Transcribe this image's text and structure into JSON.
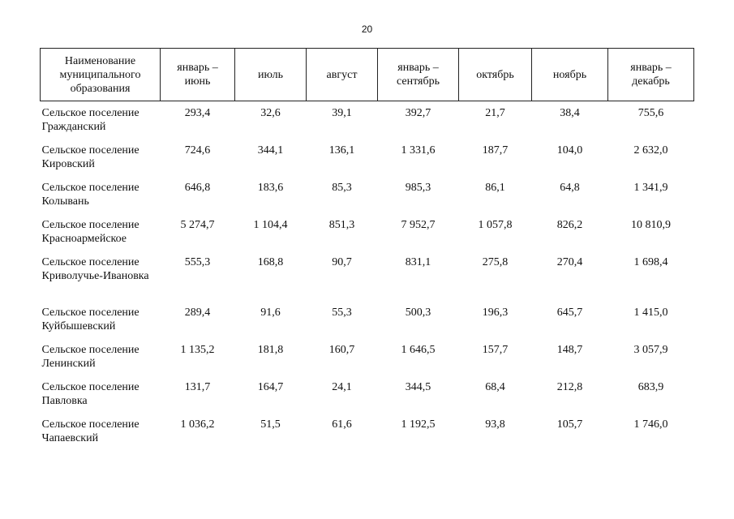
{
  "page_number": "20",
  "table": {
    "headers": [
      "Наименование муниципального образования",
      "январь – июнь",
      "июль",
      "август",
      "январь – сентябрь",
      "октябрь",
      "ноябрь",
      "январь – декабрь"
    ],
    "rows": [
      {
        "name": "Сельское поселение Гражданский",
        "values": [
          "293,4",
          "32,6",
          "39,1",
          "392,7",
          "21,7",
          "38,4",
          "755,6"
        ]
      },
      {
        "name": "Сельское поселение Кировский",
        "values": [
          "724,6",
          "344,1",
          "136,1",
          "1 331,6",
          "187,7",
          "104,0",
          "2 632,0"
        ]
      },
      {
        "name": "Сельское поселение Колывань",
        "values": [
          "646,8",
          "183,6",
          "85,3",
          "985,3",
          "86,1",
          "64,8",
          "1 341,9"
        ]
      },
      {
        "name": "Сельское поселение Красноармейское",
        "values": [
          "5 274,7",
          "1 104,4",
          "851,3",
          "7 952,7",
          "1 057,8",
          "826,2",
          "10 810,9"
        ]
      },
      {
        "name": "Сельское поселение Криволучье-Ивановка",
        "values": [
          "555,3",
          "168,8",
          "90,7",
          "831,1",
          "275,8",
          "270,4",
          "1 698,4"
        ]
      },
      {
        "name": "Сельское поселение Куйбышевский",
        "values": [
          "289,4",
          "91,6",
          "55,3",
          "500,3",
          "196,3",
          "645,7",
          "1 415,0"
        ]
      },
      {
        "name": "Сельское поселение Ленинский",
        "values": [
          "1 135,2",
          "181,8",
          "160,7",
          "1 646,5",
          "157,7",
          "148,7",
          "3 057,9"
        ]
      },
      {
        "name": "Сельское поселение Павловка",
        "values": [
          "131,7",
          "164,7",
          "24,1",
          "344,5",
          "68,4",
          "212,8",
          "683,9"
        ]
      },
      {
        "name": "Сельское поселение Чапаевский",
        "values": [
          "1 036,2",
          "51,5",
          "61,6",
          "1 192,5",
          "93,8",
          "105,7",
          "1 746,0"
        ]
      }
    ]
  }
}
